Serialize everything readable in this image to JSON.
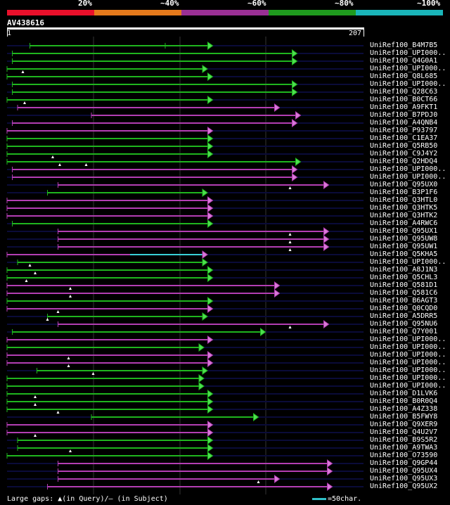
{
  "legend": {
    "segments": [
      {
        "label": "20%",
        "color": "#e8102a"
      },
      {
        "label": "~40%",
        "color": "#e57a1c"
      },
      {
        "label": "~60%",
        "color": "#9a2f96"
      },
      {
        "label": "~80%",
        "color": "#1f9a1f"
      },
      {
        "label": "~100%",
        "color": "#19b5b9"
      }
    ]
  },
  "query": {
    "name": "AV438616",
    "start": "1",
    "end": "207"
  },
  "footer": {
    "gaps_text": "Large gaps: ▲(in Query)/— (in Subject)",
    "scale_text": "=50char."
  },
  "hits": [
    {
      "label": "UniRef100_B4M7B5",
      "s": 13,
      "e": 117,
      "c": "g",
      "m": [
        90
      ],
      "t": []
    },
    {
      "label": "UniRef100_UPI000..",
      "s": 3,
      "e": 165,
      "c": "g",
      "m": [],
      "t": []
    },
    {
      "label": "UniRef100_Q4G0A1",
      "s": 3,
      "e": 165,
      "c": "g",
      "m": [],
      "t": []
    },
    {
      "label": "UniRef100_UPI000..",
      "s": 0,
      "e": 114,
      "c": "g",
      "m": [],
      "t": [
        9
      ]
    },
    {
      "label": "UniRef100_Q8L685",
      "s": 0,
      "e": 117,
      "c": "g",
      "m": [],
      "t": []
    },
    {
      "label": "UniRef100_UPI000..",
      "s": 3,
      "e": 165,
      "c": "g",
      "m": [],
      "t": []
    },
    {
      "label": "UniRef100_Q28C63",
      "s": 3,
      "e": 165,
      "c": "g",
      "m": [],
      "t": []
    },
    {
      "label": "UniRef100_B0CT66",
      "s": 0,
      "e": 117,
      "c": "g",
      "m": [],
      "t": [
        10
      ]
    },
    {
      "label": "UniRef100_A9FKT1",
      "s": 6,
      "e": 155,
      "c": "p",
      "m": [],
      "t": []
    },
    {
      "label": "UniRef100_B7PDJ0",
      "s": 48,
      "e": 167,
      "c": "p",
      "m": [],
      "t": []
    },
    {
      "label": "UniRef100_A4QNB4",
      "s": 3,
      "e": 165,
      "c": "p",
      "m": [],
      "t": []
    },
    {
      "label": "UniRef100_P93797",
      "s": 0,
      "e": 117,
      "c": "p",
      "m": [],
      "t": []
    },
    {
      "label": "UniRef100_C1EA37",
      "s": 0,
      "e": 117,
      "c": "g",
      "m": [],
      "t": []
    },
    {
      "label": "UniRef100_Q5RB50",
      "s": 0,
      "e": 117,
      "c": "g",
      "m": [],
      "t": []
    },
    {
      "label": "UniRef100_C9J4Y2",
      "s": 0,
      "e": 117,
      "c": "g",
      "m": [],
      "t": [
        26
      ]
    },
    {
      "label": "UniRef100_Q2HDQ4",
      "s": 0,
      "e": 167,
      "c": "g",
      "m": [],
      "t": [
        30,
        45
      ]
    },
    {
      "label": "UniRef100_UPI000..",
      "s": 3,
      "e": 165,
      "c": "p",
      "m": [],
      "t": []
    },
    {
      "label": "UniRef100_UPI000..",
      "s": 3,
      "e": 165,
      "c": "p",
      "m": [],
      "t": []
    },
    {
      "label": "UniRef100_Q95UX0",
      "s": 29,
      "e": 183,
      "c": "p",
      "m": [],
      "t": [
        161
      ]
    },
    {
      "label": "UniRef100_B3P1F6",
      "s": 23,
      "e": 114,
      "c": "g",
      "m": [],
      "t": []
    },
    {
      "label": "UniRef100_Q3HTL0",
      "s": 0,
      "e": 117,
      "c": "p",
      "m": [],
      "t": []
    },
    {
      "label": "UniRef100_Q3HTK5",
      "s": 0,
      "e": 117,
      "c": "p",
      "m": [],
      "t": []
    },
    {
      "label": "UniRef100_Q3HTK2",
      "s": 0,
      "e": 117,
      "c": "p",
      "m": [],
      "t": []
    },
    {
      "label": "UniRef100_A4RWC6",
      "s": 3,
      "e": 117,
      "c": "g",
      "m": [],
      "t": []
    },
    {
      "label": "UniRef100_Q95UX1",
      "s": 29,
      "e": 183,
      "c": "p",
      "m": [],
      "t": [
        161
      ]
    },
    {
      "label": "UniRef100_Q95UW8",
      "s": 29,
      "e": 183,
      "c": "p",
      "m": [],
      "t": [
        161
      ]
    },
    {
      "label": "UniRef100_Q95UW1",
      "s": 29,
      "e": 183,
      "c": "p",
      "m": [],
      "t": [
        161
      ]
    },
    {
      "label": "UniRef100_Q5KHA5",
      "s": 0,
      "e": 114,
      "c": "p",
      "m": [],
      "t": [],
      "cyan": [
        70,
        114
      ]
    },
    {
      "label": "UniRef100_UPI000..",
      "s": 6,
      "e": 114,
      "c": "g",
      "m": [],
      "t": [
        13
      ]
    },
    {
      "label": "UniRef100_A8J1N3",
      "s": 0,
      "e": 117,
      "c": "g",
      "m": [],
      "t": [
        16
      ]
    },
    {
      "label": "UniRef100_Q5CHL3",
      "s": 0,
      "e": 117,
      "c": "g",
      "m": [],
      "t": [
        11
      ]
    },
    {
      "label": "UniRef100_Q581D1",
      "s": 0,
      "e": 155,
      "c": "p",
      "m": [],
      "t": [
        36
      ]
    },
    {
      "label": "UniRef100_Q581C6",
      "s": 0,
      "e": 155,
      "c": "p",
      "m": [],
      "t": [
        36
      ]
    },
    {
      "label": "UniRef100_B6AGT3",
      "s": 0,
      "e": 117,
      "c": "g",
      "m": [],
      "t": []
    },
    {
      "label": "UniRef100_Q0CQD0",
      "s": 0,
      "e": 117,
      "c": "p",
      "m": [],
      "t": [
        29
      ]
    },
    {
      "label": "UniRef100_A5DRR5",
      "s": 23,
      "e": 114,
      "c": "g",
      "m": [],
      "t": [
        23
      ]
    },
    {
      "label": "UniRef100_Q95NU6",
      "s": 29,
      "e": 183,
      "c": "p",
      "m": [],
      "t": [
        161
      ]
    },
    {
      "label": "UniRef100_Q7Y001",
      "s": 3,
      "e": 147,
      "c": "g",
      "m": [],
      "t": []
    },
    {
      "label": "UniRef100_UPI000..",
      "s": 0,
      "e": 117,
      "c": "p",
      "m": [],
      "t": []
    },
    {
      "label": "UniRef100_UPI000..",
      "s": 0,
      "e": 112,
      "c": "g",
      "m": [],
      "t": []
    },
    {
      "label": "UniRef100_UPI000..",
      "s": 0,
      "e": 117,
      "c": "p",
      "m": [],
      "t": [
        35
      ]
    },
    {
      "label": "UniRef100_UPI000..",
      "s": 0,
      "e": 117,
      "c": "p",
      "m": [],
      "t": [
        35
      ]
    },
    {
      "label": "UniRef100_UPI000..",
      "s": 17,
      "e": 114,
      "c": "g",
      "m": [],
      "t": [
        49
      ]
    },
    {
      "label": "UniRef100_UPI000..",
      "s": 0,
      "e": 112,
      "c": "g",
      "m": [],
      "t": []
    },
    {
      "label": "UniRef100_UPI000..",
      "s": 0,
      "e": 112,
      "c": "g",
      "m": [],
      "t": []
    },
    {
      "label": "UniRef100_D1LVK6",
      "s": 0,
      "e": 117,
      "c": "g",
      "m": [],
      "t": [
        16
      ]
    },
    {
      "label": "UniRef100_B0R0Q4",
      "s": 0,
      "e": 117,
      "c": "g",
      "m": [],
      "t": [
        16
      ]
    },
    {
      "label": "UniRef100_A4Z338",
      "s": 0,
      "e": 117,
      "c": "g",
      "m": [],
      "t": [
        29
      ]
    },
    {
      "label": "UniRef100_B5FWY8",
      "s": 48,
      "e": 143,
      "c": "g",
      "m": [],
      "t": []
    },
    {
      "label": "UniRef100_Q9XER9",
      "s": 0,
      "e": 117,
      "c": "p",
      "m": [],
      "t": []
    },
    {
      "label": "UniRef100_Q4U2V7",
      "s": 0,
      "e": 117,
      "c": "p",
      "m": [],
      "t": [
        16
      ]
    },
    {
      "label": "UniRef100_B9S5R2",
      "s": 6,
      "e": 117,
      "c": "g",
      "m": [],
      "t": []
    },
    {
      "label": "UniRef100_A9TWA3",
      "s": 6,
      "e": 117,
      "c": "g",
      "m": [],
      "t": [
        36
      ]
    },
    {
      "label": "UniRef100_O73590",
      "s": 0,
      "e": 117,
      "c": "g",
      "m": [],
      "t": []
    },
    {
      "label": "UniRef100_Q9GP44",
      "s": 29,
      "e": 185,
      "c": "p",
      "m": [],
      "t": []
    },
    {
      "label": "UniRef100_Q95UX4",
      "s": 29,
      "e": 185,
      "c": "p",
      "m": [],
      "t": []
    },
    {
      "label": "UniRef100_Q95UX3",
      "s": 29,
      "e": 155,
      "c": "p",
      "m": [],
      "t": [
        143
      ]
    },
    {
      "label": "UniRef100_Q95UX2",
      "s": 23,
      "e": 185,
      "c": "p",
      "m": [],
      "t": []
    }
  ]
}
